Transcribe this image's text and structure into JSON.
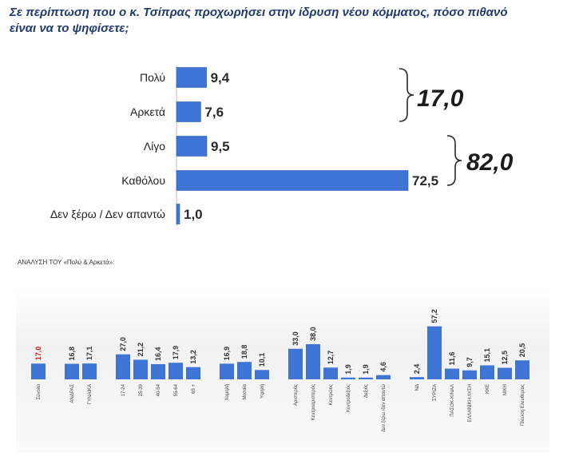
{
  "question": {
    "line1": "Σε περίπτωση που ο κ. Τσίπρας προχωρήσει στην ίδρυση νέου κόμματος, πόσο πιθανό",
    "line2": "είναι να το ψηφίσετε;"
  },
  "colors": {
    "bar": "#3e74d6",
    "bar_edge": "#2b5bb5",
    "highlight": "#d01a1a",
    "title": "#1f3b6e"
  },
  "chart_data": [
    {
      "type": "bar",
      "orientation": "horizontal",
      "categories": [
        "Πολύ",
        "Αρκετά",
        "Λίγο",
        "Καθόλου",
        "Δεν ξέρω / Δεν απαντώ"
      ],
      "values": [
        9.4,
        7.6,
        9.5,
        72.5,
        1.0
      ],
      "value_labels": [
        "9,4",
        "7,6",
        "9,5",
        "72,5",
        "1,0"
      ],
      "xlim": [
        0,
        100
      ],
      "annotations": [
        {
          "text": "17,0",
          "spans": [
            "Πολύ",
            "Αρκετά"
          ]
        },
        {
          "text": "82,0",
          "spans": [
            "Λίγο",
            "Καθόλου"
          ]
        }
      ]
    },
    {
      "type": "bar",
      "orientation": "vertical",
      "title": "ΑΝΑΛΥΣΗ ΤΟΥ «Πολύ & Αρκετά»:",
      "ylim": [
        0,
        60
      ],
      "groups": [
        {
          "categories": [
            "Σύνολο"
          ],
          "values": [
            17.0
          ],
          "value_labels": [
            "17,0"
          ],
          "highlight": [
            0
          ]
        },
        {
          "categories": [
            "ΑΝΔΡΑΣ",
            "ΓΥΝΑΙΚΑ"
          ],
          "values": [
            16.8,
            17.1
          ],
          "value_labels": [
            "16,8",
            "17,1"
          ]
        },
        {
          "categories": [
            "17-24",
            "25-39",
            "40-54",
            "55-64",
            "65 +"
          ],
          "values": [
            27.0,
            21.2,
            16.4,
            17.9,
            13.2
          ],
          "value_labels": [
            "27,0",
            "21,2",
            "16,4",
            "17,9",
            "13,2"
          ]
        },
        {
          "categories": [
            "Χαμηλή",
            "Μεσαία",
            "Υψηλή"
          ],
          "values": [
            16.9,
            18.8,
            10.1
          ],
          "value_labels": [
            "16,9",
            "18,8",
            "10,1"
          ]
        },
        {
          "categories": [
            "Αριστερός",
            "Κεντροαριστερός",
            "Κεντρώος",
            "Κεντροδεξιός",
            "Δεξιός",
            "Δεν ξέρω /δεν απαντώ"
          ],
          "values": [
            33.0,
            38.0,
            12.7,
            1.9,
            1.9,
            4.6
          ],
          "value_labels": [
            "33,0",
            "38,0",
            "12,7",
            "1,9",
            "1,9",
            "4,6"
          ]
        },
        {
          "categories": [
            "ΝΔ",
            "ΣΥΡΙΖΑ",
            "ΠΑΣΟΚ-ΚΙΝΑΛ",
            "ΕΛΛΗΝΙΚΗ ΛΥΣΗ",
            "ΚΚΕ",
            "ΝΙΚΗ",
            "Πλεύση Ελευθερίας"
          ],
          "values": [
            2.4,
            57.2,
            11.6,
            9.7,
            15.1,
            12.5,
            20.5
          ],
          "value_labels": [
            "2,4",
            "57,2",
            "11,6",
            "9,7",
            "15,1",
            "12,5",
            "20,5"
          ]
        }
      ]
    }
  ]
}
